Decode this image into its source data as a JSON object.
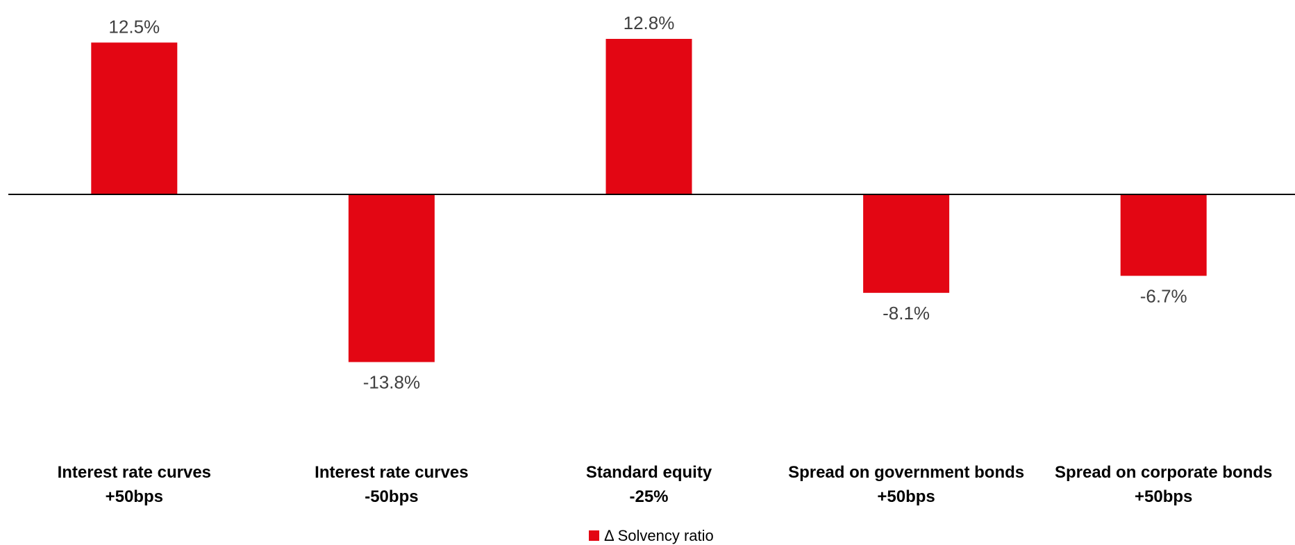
{
  "chart_data": {
    "type": "bar",
    "categories": [
      [
        "Interest rate curves",
        "+50bps"
      ],
      [
        "Interest rate curves",
        "-50bps"
      ],
      [
        "Standard equity",
        "-25%"
      ],
      [
        "Spread on government bonds",
        "+50bps"
      ],
      [
        "Spread on corporate bonds",
        "+50bps"
      ]
    ],
    "series": [
      {
        "name": "Δ Solvency ratio",
        "values": [
          12.5,
          -13.8,
          12.8,
          -8.1,
          -6.7
        ],
        "labels": [
          "12.5%",
          "-13.8%",
          "12.8%",
          "-8.1%",
          "-6.7%"
        ],
        "color": "#E30613"
      }
    ],
    "ylim": [
      -15,
      15
    ],
    "grid": false,
    "legend": "bottom-center",
    "zero_line_color": "#000000"
  }
}
